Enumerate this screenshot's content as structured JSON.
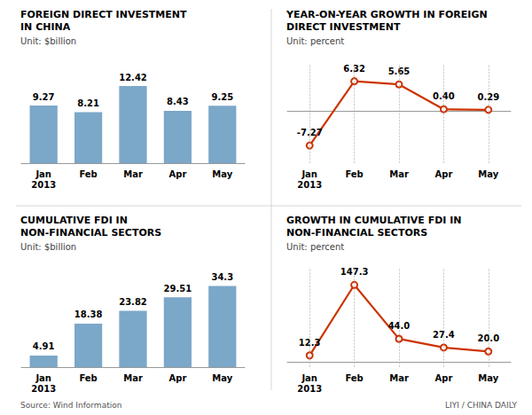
{
  "chart_data": [
    {
      "type": "bar",
      "title": "FOREIGN DIRECT INVESTMENT\nIN CHINA",
      "subtitle": "Unit: $billion",
      "categories": [
        "Jan\n2013",
        "Feb",
        "Mar",
        "Apr",
        "May"
      ],
      "values": [
        9.27,
        8.21,
        12.42,
        8.43,
        9.25
      ],
      "color": "#7BA7C9",
      "ylim": [
        0,
        16
      ],
      "grid": false,
      "data_labels": true,
      "tick_labels": "x"
    },
    {
      "type": "line",
      "title": "YEAR-ON-YEAR GROWTH IN FOREIGN\nDIRECT INVESTMENT",
      "subtitle": "Unit: percent",
      "categories": [
        "Jan\n2013",
        "Feb",
        "Mar",
        "Apr",
        "May"
      ],
      "values": [
        -7.27,
        6.32,
        5.65,
        0.4,
        0.29
      ],
      "value_labels": [
        "-7.27",
        "6.32",
        "5.65",
        "0.40",
        "0.29"
      ],
      "color": "#CC3300",
      "marker": "circle",
      "ylim": [
        -11,
        10
      ],
      "grid": "x",
      "data_labels": true,
      "tick_labels": "x"
    },
    {
      "type": "bar",
      "title": "CUMULATIVE FDI IN\nNON-FINANCIAL SECTORS",
      "subtitle": "Unit: $billion",
      "categories": [
        "Jan\n2013",
        "Feb",
        "Mar",
        "Apr",
        "May"
      ],
      "values": [
        4.91,
        18.38,
        23.82,
        29.51,
        34.3
      ],
      "color": "#7BA7C9",
      "ylim": [
        0,
        42
      ],
      "grid": false,
      "data_labels": true,
      "tick_labels": "x",
      "annotations": [
        "Source: Wind Information"
      ]
    },
    {
      "type": "line",
      "title": "GROWTH IN CUMULATIVE FDI IN\nNON-FINANCIAL SECTORS",
      "subtitle": "Unit: percent",
      "categories": [
        "Jan\n2013",
        "Feb",
        "Mar",
        "Apr",
        "May"
      ],
      "values": [
        12.3,
        147.3,
        44.0,
        27.4,
        20.0
      ],
      "value_labels": [
        "12.3",
        "147.3",
        "44.0",
        "27.4",
        "20.0"
      ],
      "color": "#CC3300",
      "marker": "circle",
      "ylim": [
        -10,
        180
      ],
      "grid": "x",
      "data_labels": true,
      "tick_labels": "x",
      "annotations": [
        "LIYI / CHINA DAILY"
      ]
    }
  ]
}
